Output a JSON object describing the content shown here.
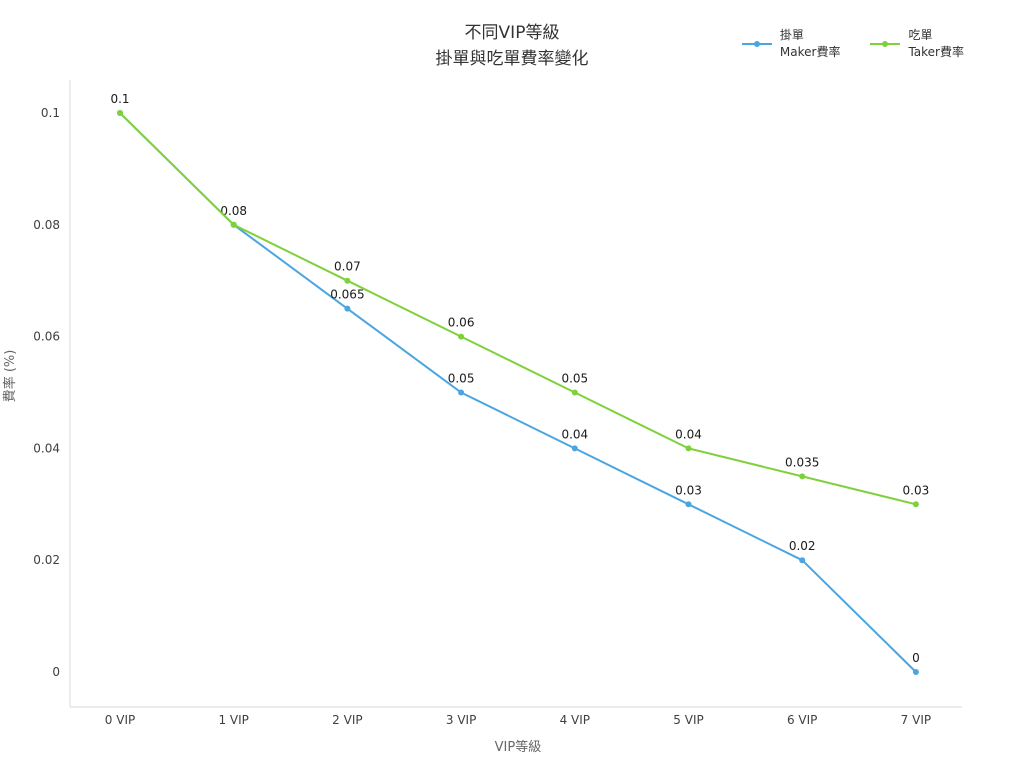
{
  "title": {
    "line1": "不同VIP等級",
    "line2": "掛單與吃單費率變化"
  },
  "chart_data": {
    "type": "line",
    "title": "不同VIP等級 掛單與吃單費率變化",
    "categories": [
      "0 VIP",
      "1 VIP",
      "2 VIP",
      "3 VIP",
      "4 VIP",
      "5 VIP",
      "6 VIP",
      "7 VIP"
    ],
    "series": [
      {
        "name": "掛單 Maker費率",
        "legend_line1": "掛單",
        "legend_line2": "Maker費率",
        "color": "#4AA5E0",
        "values": [
          0.1,
          0.08,
          0.065,
          0.05,
          0.04,
          0.03,
          0.02,
          0
        ],
        "point_labels": [
          "0.1",
          "0.08",
          "0.065",
          "0.05",
          "0.04",
          "0.03",
          "0.02",
          "0"
        ]
      },
      {
        "name": "吃單 Taker費率",
        "legend_line1": "吃單",
        "legend_line2": "Taker費率",
        "color": "#7FD13B",
        "values": [
          0.1,
          0.08,
          0.07,
          0.06,
          0.05,
          0.04,
          0.035,
          0.03
        ],
        "point_labels": [
          null,
          null,
          "0.07",
          "0.06",
          "0.05",
          "0.04",
          "0.035",
          "0.03"
        ]
      }
    ],
    "xlabel": "VIP等級",
    "ylabel": "費率 (%)",
    "ylim": [
      0,
      0.1
    ],
    "yticks": [
      {
        "value": 0,
        "label": "0"
      },
      {
        "value": 0.02,
        "label": "0.02"
      },
      {
        "value": 0.04,
        "label": "0.04"
      },
      {
        "value": 0.06,
        "label": "0.06"
      },
      {
        "value": 0.08,
        "label": "0.08"
      },
      {
        "value": 0.1,
        "label": "0.1"
      }
    ],
    "grid": false,
    "legend_position": "top-right"
  }
}
